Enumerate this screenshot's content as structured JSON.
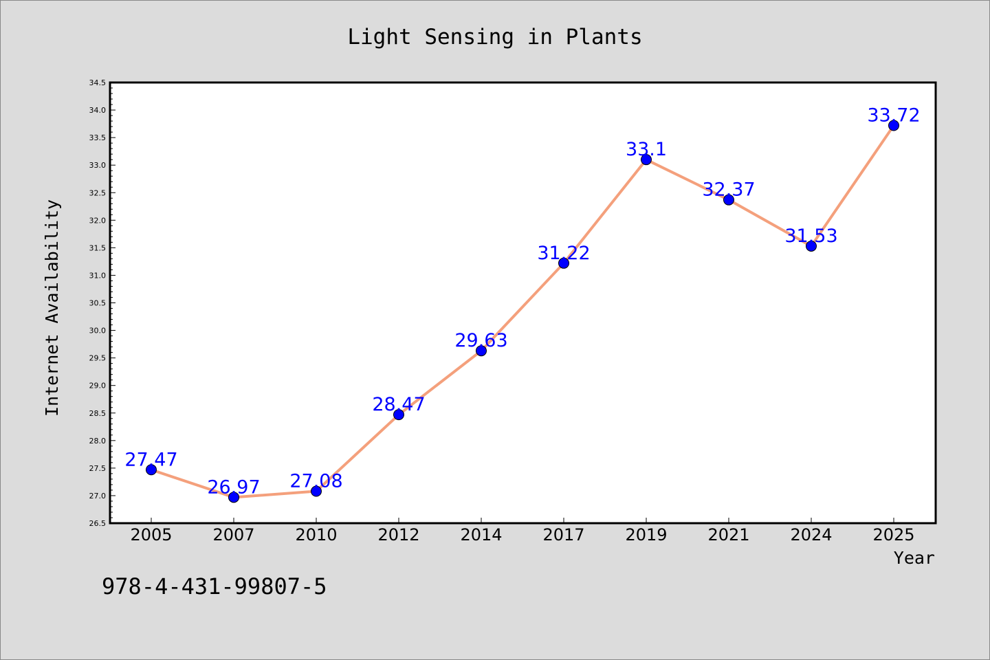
{
  "chart_data": {
    "type": "line",
    "title": "Light Sensing in Plants",
    "xlabel": "Year",
    "ylabel": "Internet Availability",
    "categories": [
      "2005",
      "2007",
      "2010",
      "2012",
      "2014",
      "2017",
      "2019",
      "2021",
      "2024",
      "2025"
    ],
    "values": [
      27.47,
      26.97,
      27.08,
      28.47,
      29.63,
      31.22,
      33.1,
      32.37,
      31.53,
      33.72
    ],
    "data_labels": [
      "27.47",
      "26.97",
      "27.08",
      "28.47",
      "29.63",
      "31.22",
      "33.1",
      "32.37",
      "31.53",
      "33.72"
    ],
    "ylim": [
      26.5,
      34.5
    ],
    "yticks": [
      "26.5",
      "27.0",
      "27.5",
      "28.0",
      "28.5",
      "29.0",
      "29.5",
      "30.0",
      "30.5",
      "31.0",
      "31.5",
      "32.0",
      "32.5",
      "33.0",
      "33.5",
      "34.0",
      "34.5"
    ],
    "grid": false,
    "colors": {
      "line": "#f4a07c",
      "marker": "#0000ff",
      "data_label": "#0000ff",
      "plot_background": "#ffffff",
      "figure_background": "#dcdcdc"
    }
  },
  "footer": {
    "isbn": "978-4-431-99807-5"
  }
}
